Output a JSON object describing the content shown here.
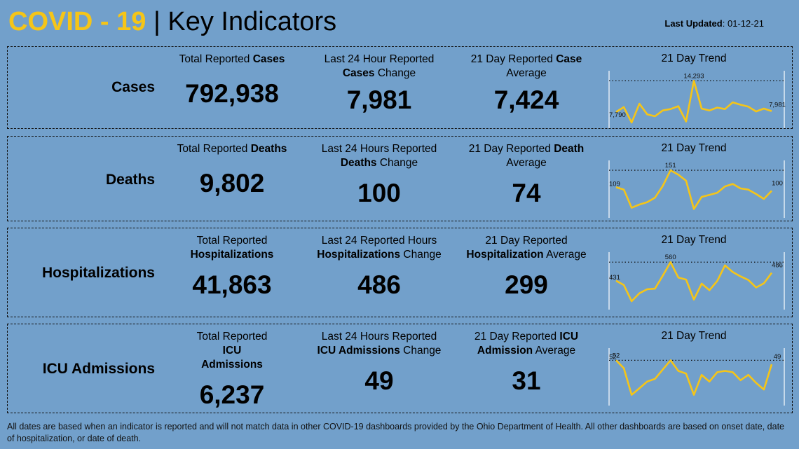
{
  "header": {
    "brand": "COVID - 19",
    "separator": "|",
    "subtitle": "Key Indicators",
    "updated_label": "Last Updated",
    "updated_value": ": 01-12-21"
  },
  "trend_title": "21 Day Trend",
  "rows": [
    {
      "label": "Cases",
      "c1": {
        "pre": "Total Reported ",
        "bold": "Cases",
        "post": "",
        "value": "792,938"
      },
      "c2": {
        "l1": "Last 24 Hour Reported",
        "bold": "Cases",
        "post": " Change",
        "value": "7,981"
      },
      "c3": {
        "pre": "21 Day Reported ",
        "bold": "Case",
        "post": "Average",
        "value": "7,424"
      }
    },
    {
      "label": "Deaths",
      "c1": {
        "pre": "Total Reported ",
        "bold": "Deaths",
        "post": "",
        "value": "9,802"
      },
      "c2": {
        "l1": "Last 24 Hours Reported",
        "bold": "Deaths",
        "post": " Change",
        "value": "100"
      },
      "c3": {
        "pre": "21 Day Reported ",
        "bold": "Death",
        "post": "Average",
        "value": "74"
      }
    },
    {
      "label": "Hospitalizations",
      "c1": {
        "pre": "Total Reported",
        "bold": "Hospitalizations",
        "post": "",
        "value": "41,863"
      },
      "c2": {
        "l1": "Last 24 Reported Hours",
        "bold": "Hospitalizations",
        "post": " Change",
        "value": "486"
      },
      "c3": {
        "pre": "21 Day Reported",
        "bold": "Hospitalization",
        "post": " Average",
        "value": "299"
      }
    },
    {
      "label": "ICU Admissions",
      "c1": {
        "pre": "Total Reported ",
        "bold": "ICU",
        "post": "Admissions",
        "value": "6,237"
      },
      "c2": {
        "l1": "Last 24 Hours Reported",
        "bold": "ICU Admissions",
        "post": " Change",
        "value": "49"
      },
      "c3": {
        "pre": "21 Day Reported ",
        "bold": "ICU",
        "post": " Average",
        "value": "31",
        "bold2": "Admission"
      }
    }
  ],
  "footer": "All dates are based when an indicator is reported and will not match data in other COVID-19 dashboards provided by the Ohio Department of Health. All other dashboards are based on onset date, date of hospitalization, or date of death.",
  "colors": {
    "brand": "#f5c518",
    "line": "#f5c518",
    "background": "#72a0cb"
  },
  "chart_data": [
    {
      "type": "line",
      "title": "21 Day Trend",
      "values": [
        7790,
        8800,
        5600,
        9500,
        7300,
        6900,
        8100,
        8400,
        9000,
        5800,
        14293,
        8500,
        8100,
        8700,
        8400,
        9800,
        9300,
        8900,
        7900,
        8500,
        7981
      ],
      "reference": 14293,
      "labels": {
        "first": "7,790",
        "max": "14,293",
        "last": "7,981"
      },
      "ylim": [
        5000,
        15500
      ]
    },
    {
      "type": "line",
      "title": "21 Day Trend",
      "values": [
        109,
        103,
        58,
        66,
        72,
        83,
        112,
        151,
        140,
        125,
        55,
        85,
        90,
        95,
        111,
        117,
        106,
        103,
        92,
        80,
        100
      ],
      "reference": 151,
      "labels": {
        "first": "109",
        "max": "151",
        "last": "100"
      },
      "ylim": [
        40,
        165
      ]
    },
    {
      "type": "line",
      "title": "21 Day Trend",
      "values": [
        431,
        401,
        289,
        344,
        372,
        376,
        466,
        560,
        453,
        439,
        300,
        411,
        365,
        429,
        538,
        491,
        461,
        436,
        384,
        413,
        486
      ],
      "reference": 560,
      "labels": {
        "first": "431",
        "max": "560",
        "last": "486"
      },
      "ylim": [
        250,
        600
      ]
    },
    {
      "type": "line",
      "title": "21 Day Trend",
      "values": [
        52,
        46,
        26,
        31,
        36,
        38,
        45,
        52,
        44,
        42,
        26,
        41,
        36,
        43,
        44,
        43,
        37,
        41,
        35,
        30,
        49
      ],
      "reference": 52,
      "labels": {
        "first": "52",
        "max": "52",
        "last": "49"
      },
      "ylim": [
        20,
        58
      ]
    }
  ]
}
